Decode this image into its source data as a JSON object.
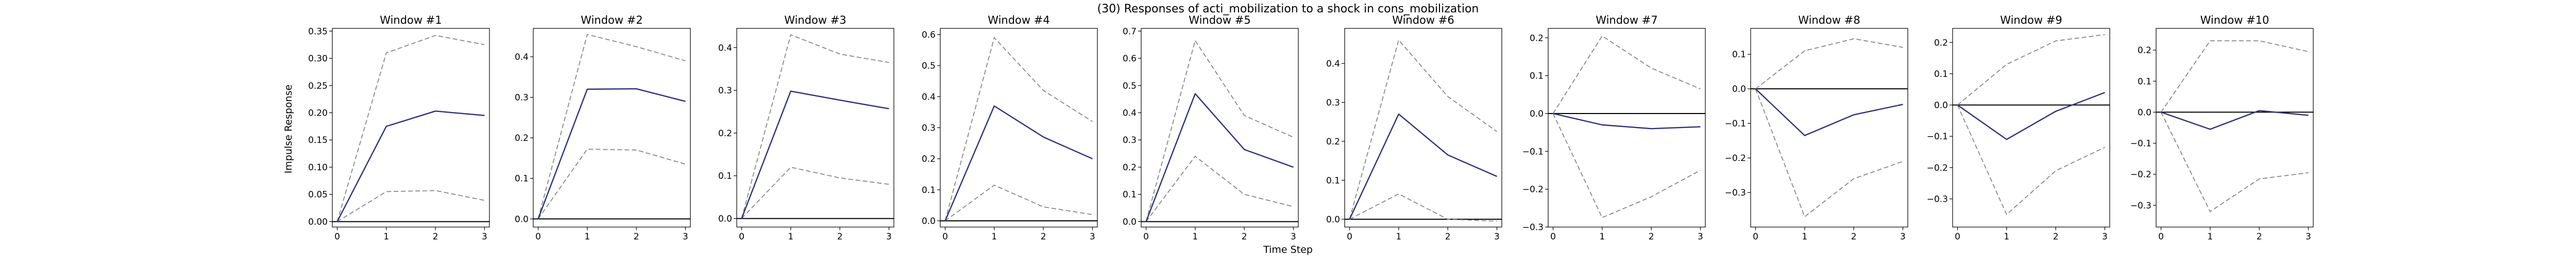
{
  "figure": {
    "title": "(30) Responses of acti_mobilization to a shock in cons_mobilization",
    "xlabel": "Time Step",
    "ylabel": "Impulse Response"
  },
  "colors": {
    "response": "#2e2e80",
    "band": "#888888",
    "zero": "#000000"
  },
  "chart_data": [
    {
      "type": "line",
      "title": "Window #1",
      "x": [
        0,
        1,
        2,
        3
      ],
      "xticks": [
        0,
        1,
        2,
        3
      ],
      "ylim": [
        -0.01,
        0.355
      ],
      "yticks": [
        0.0,
        0.05,
        0.1,
        0.15,
        0.2,
        0.25,
        0.3,
        0.35
      ],
      "ytick_labels": [
        "0.00",
        "0.05",
        "0.10",
        "0.15",
        "0.20",
        "0.25",
        "0.30",
        "0.35"
      ],
      "response": [
        0.0,
        0.175,
        0.203,
        0.195
      ],
      "lower": [
        0.0,
        0.055,
        0.057,
        0.039
      ],
      "upper": [
        0.0,
        0.31,
        0.342,
        0.325
      ]
    },
    {
      "type": "line",
      "title": "Window #2",
      "x": [
        0,
        1,
        2,
        3
      ],
      "xticks": [
        0,
        1,
        2,
        3
      ],
      "ylim": [
        -0.02,
        0.47
      ],
      "yticks": [
        0.0,
        0.1,
        0.2,
        0.3,
        0.4
      ],
      "ytick_labels": [
        "0.0",
        "0.1",
        "0.2",
        "0.3",
        "0.4"
      ],
      "response": [
        0.0,
        0.32,
        0.321,
        0.29
      ],
      "lower": [
        0.0,
        0.172,
        0.17,
        0.135
      ],
      "upper": [
        0.0,
        0.455,
        0.425,
        0.39
      ]
    },
    {
      "type": "line",
      "title": "Window #3",
      "x": [
        0,
        1,
        2,
        3
      ],
      "xticks": [
        0,
        1,
        2,
        3
      ],
      "ylim": [
        -0.02,
        0.445
      ],
      "yticks": [
        0.0,
        0.1,
        0.2,
        0.3,
        0.4
      ],
      "ytick_labels": [
        "0.0",
        "0.1",
        "0.2",
        "0.3",
        "0.4"
      ],
      "response": [
        0.0,
        0.298,
        0.277,
        0.257
      ],
      "lower": [
        0.0,
        0.12,
        0.095,
        0.08
      ],
      "upper": [
        0.0,
        0.43,
        0.385,
        0.365
      ]
    },
    {
      "type": "line",
      "title": "Window #4",
      "x": [
        0,
        1,
        2,
        3
      ],
      "xticks": [
        0,
        1,
        2,
        3
      ],
      "ylim": [
        -0.02,
        0.62
      ],
      "yticks": [
        0.0,
        0.1,
        0.2,
        0.3,
        0.4,
        0.5,
        0.6
      ],
      "ytick_labels": [
        "0.0",
        "0.1",
        "0.2",
        "0.3",
        "0.4",
        "0.5",
        "0.6"
      ],
      "response": [
        0.0,
        0.37,
        0.27,
        0.2
      ],
      "lower": [
        0.0,
        0.115,
        0.045,
        0.02
      ],
      "upper": [
        0.0,
        0.59,
        0.42,
        0.32
      ]
    },
    {
      "type": "line",
      "title": "Window #5",
      "x": [
        0,
        1,
        2,
        3
      ],
      "xticks": [
        0,
        1,
        2,
        3
      ],
      "ylim": [
        -0.02,
        0.71
      ],
      "yticks": [
        0.0,
        0.1,
        0.2,
        0.3,
        0.4,
        0.5,
        0.6,
        0.7
      ],
      "ytick_labels": [
        "0.0",
        "0.1",
        "0.2",
        "0.3",
        "0.4",
        "0.5",
        "0.6",
        "0.7"
      ],
      "response": [
        0.0,
        0.47,
        0.265,
        0.2
      ],
      "lower": [
        0.0,
        0.24,
        0.1,
        0.055
      ],
      "upper": [
        0.0,
        0.665,
        0.39,
        0.31
      ]
    },
    {
      "type": "line",
      "title": "Window #6",
      "x": [
        0,
        1,
        2,
        3
      ],
      "xticks": [
        0,
        1,
        2,
        3
      ],
      "ylim": [
        -0.02,
        0.49
      ],
      "yticks": [
        0.0,
        0.1,
        0.2,
        0.3,
        0.4
      ],
      "ytick_labels": [
        "0.0",
        "0.1",
        "0.2",
        "0.3",
        "0.4"
      ],
      "response": [
        0.0,
        0.27,
        0.165,
        0.11
      ],
      "lower": [
        0.0,
        0.065,
        0.0,
        -0.005
      ],
      "upper": [
        0.0,
        0.46,
        0.315,
        0.225
      ]
    },
    {
      "type": "line",
      "title": "Window #7",
      "x": [
        0,
        1,
        2,
        3
      ],
      "xticks": [
        0,
        1,
        2,
        3
      ],
      "ylim": [
        -0.3,
        0.225
      ],
      "yticks": [
        -0.3,
        -0.2,
        -0.1,
        0.0,
        0.1,
        0.2
      ],
      "ytick_labels": [
        "−0.3",
        "−0.2",
        "−0.1",
        "0.0",
        "0.1",
        "0.2"
      ],
      "response": [
        0.0,
        -0.03,
        -0.04,
        -0.035
      ],
      "lower": [
        0.0,
        -0.275,
        -0.22,
        -0.15
      ],
      "upper": [
        0.0,
        0.205,
        0.12,
        0.065
      ]
    },
    {
      "type": "line",
      "title": "Window #8",
      "x": [
        0,
        1,
        2,
        3
      ],
      "xticks": [
        0,
        1,
        2,
        3
      ],
      "ylim": [
        -0.4,
        0.175
      ],
      "yticks": [
        -0.3,
        -0.2,
        -0.1,
        0.0,
        0.1
      ],
      "ytick_labels": [
        "−0.3",
        "−0.2",
        "−0.1",
        "0.0",
        "0.1"
      ],
      "response": [
        0.0,
        -0.135,
        -0.075,
        -0.045
      ],
      "lower": [
        0.0,
        -0.37,
        -0.26,
        -0.21
      ],
      "upper": [
        0.0,
        0.11,
        0.145,
        0.12
      ]
    },
    {
      "type": "line",
      "title": "Window #9",
      "x": [
        0,
        1,
        2,
        3
      ],
      "xticks": [
        0,
        1,
        2,
        3
      ],
      "ylim": [
        -0.39,
        0.245
      ],
      "yticks": [
        -0.3,
        -0.2,
        -0.1,
        0.0,
        0.1,
        0.2
      ],
      "ytick_labels": [
        "−0.3",
        "−0.2",
        "−0.1",
        "0.0",
        "0.1",
        "0.2"
      ],
      "response": [
        0.0,
        -0.11,
        -0.02,
        0.04
      ],
      "lower": [
        0.0,
        -0.35,
        -0.21,
        -0.135
      ],
      "upper": [
        0.0,
        0.13,
        0.205,
        0.225
      ]
    },
    {
      "type": "line",
      "title": "Window #10",
      "x": [
        0,
        1,
        2,
        3
      ],
      "xticks": [
        0,
        1,
        2,
        3
      ],
      "ylim": [
        -0.37,
        0.27
      ],
      "yticks": [
        -0.3,
        -0.2,
        -0.1,
        0.0,
        0.1,
        0.2
      ],
      "ytick_labels": [
        "−0.3",
        "−0.2",
        "−0.1",
        "0.0",
        "0.1",
        "0.2"
      ],
      "response": [
        0.0,
        -0.055,
        0.005,
        -0.01
      ],
      "lower": [
        0.0,
        -0.32,
        -0.215,
        -0.195
      ],
      "upper": [
        0.0,
        0.23,
        0.23,
        0.195
      ]
    }
  ]
}
